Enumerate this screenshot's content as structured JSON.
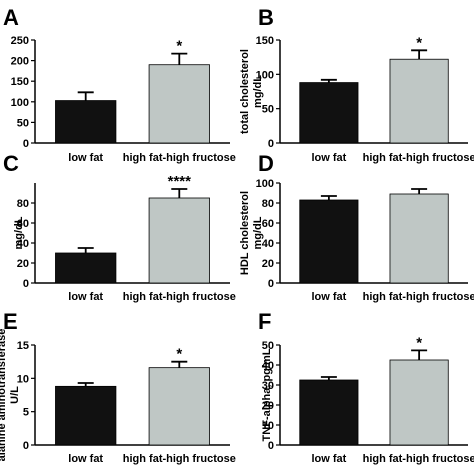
{
  "colors": {
    "low_fat": "#111111",
    "high_fat": "#bfc7c5",
    "axis": "#000000"
  },
  "chart_data": [
    {
      "panel": "A",
      "type": "bar",
      "categories": [
        "low fat",
        "high fat-high fructose"
      ],
      "values": [
        103,
        190
      ],
      "errors": [
        20,
        27
      ],
      "significance": [
        "",
        "*"
      ],
      "ylabel": "",
      "ylim": [
        0,
        250
      ],
      "yticks": [
        0,
        50,
        100,
        150,
        200,
        250
      ]
    },
    {
      "panel": "B",
      "type": "bar",
      "categories": [
        "low fat",
        "high fat-high fructose"
      ],
      "values": [
        88,
        122
      ],
      "errors": [
        4,
        13
      ],
      "significance": [
        "",
        "*"
      ],
      "ylabel": "total cholesterol\nmg/dL",
      "ylim": [
        0,
        150
      ],
      "yticks": [
        0,
        50,
        100,
        150
      ]
    },
    {
      "panel": "C",
      "type": "bar",
      "categories": [
        "low fat",
        "high fat-high fructose"
      ],
      "values": [
        30,
        85
      ],
      "errors": [
        5,
        9
      ],
      "significance": [
        "",
        "****"
      ],
      "ylabel": "mg/dL",
      "ylim": [
        0,
        100
      ],
      "yticks": [
        0,
        20,
        40,
        60,
        80
      ]
    },
    {
      "panel": "D",
      "type": "bar",
      "categories": [
        "low fat",
        "high fat-high fructose"
      ],
      "values": [
        83,
        89
      ],
      "errors": [
        4,
        5
      ],
      "significance": [
        "",
        ""
      ],
      "ylabel": "HDL cholesterol\nmg/dL",
      "ylim": [
        0,
        100
      ],
      "yticks": [
        0,
        20,
        40,
        60,
        80,
        100
      ]
    },
    {
      "panel": "E",
      "type": "bar",
      "categories": [
        "low fat",
        "high fat-high fructose"
      ],
      "values": [
        8.8,
        11.6
      ],
      "errors": [
        0.5,
        0.9
      ],
      "significance": [
        "",
        "*"
      ],
      "ylabel": "alanine aminotransferase\nU/L",
      "ylim": [
        0,
        15
      ],
      "yticks": [
        0,
        5,
        10,
        15
      ]
    },
    {
      "panel": "F",
      "type": "bar",
      "categories": [
        "low fat",
        "high fat-high fructose"
      ],
      "values": [
        32.5,
        42.5
      ],
      "errors": [
        1.5,
        4.8
      ],
      "significance": [
        "",
        "*"
      ],
      "ylabel": "TNF-alpha, pg/mL",
      "ylim": [
        0,
        50
      ],
      "yticks": [
        0,
        10,
        20,
        30,
        40,
        50
      ]
    }
  ]
}
